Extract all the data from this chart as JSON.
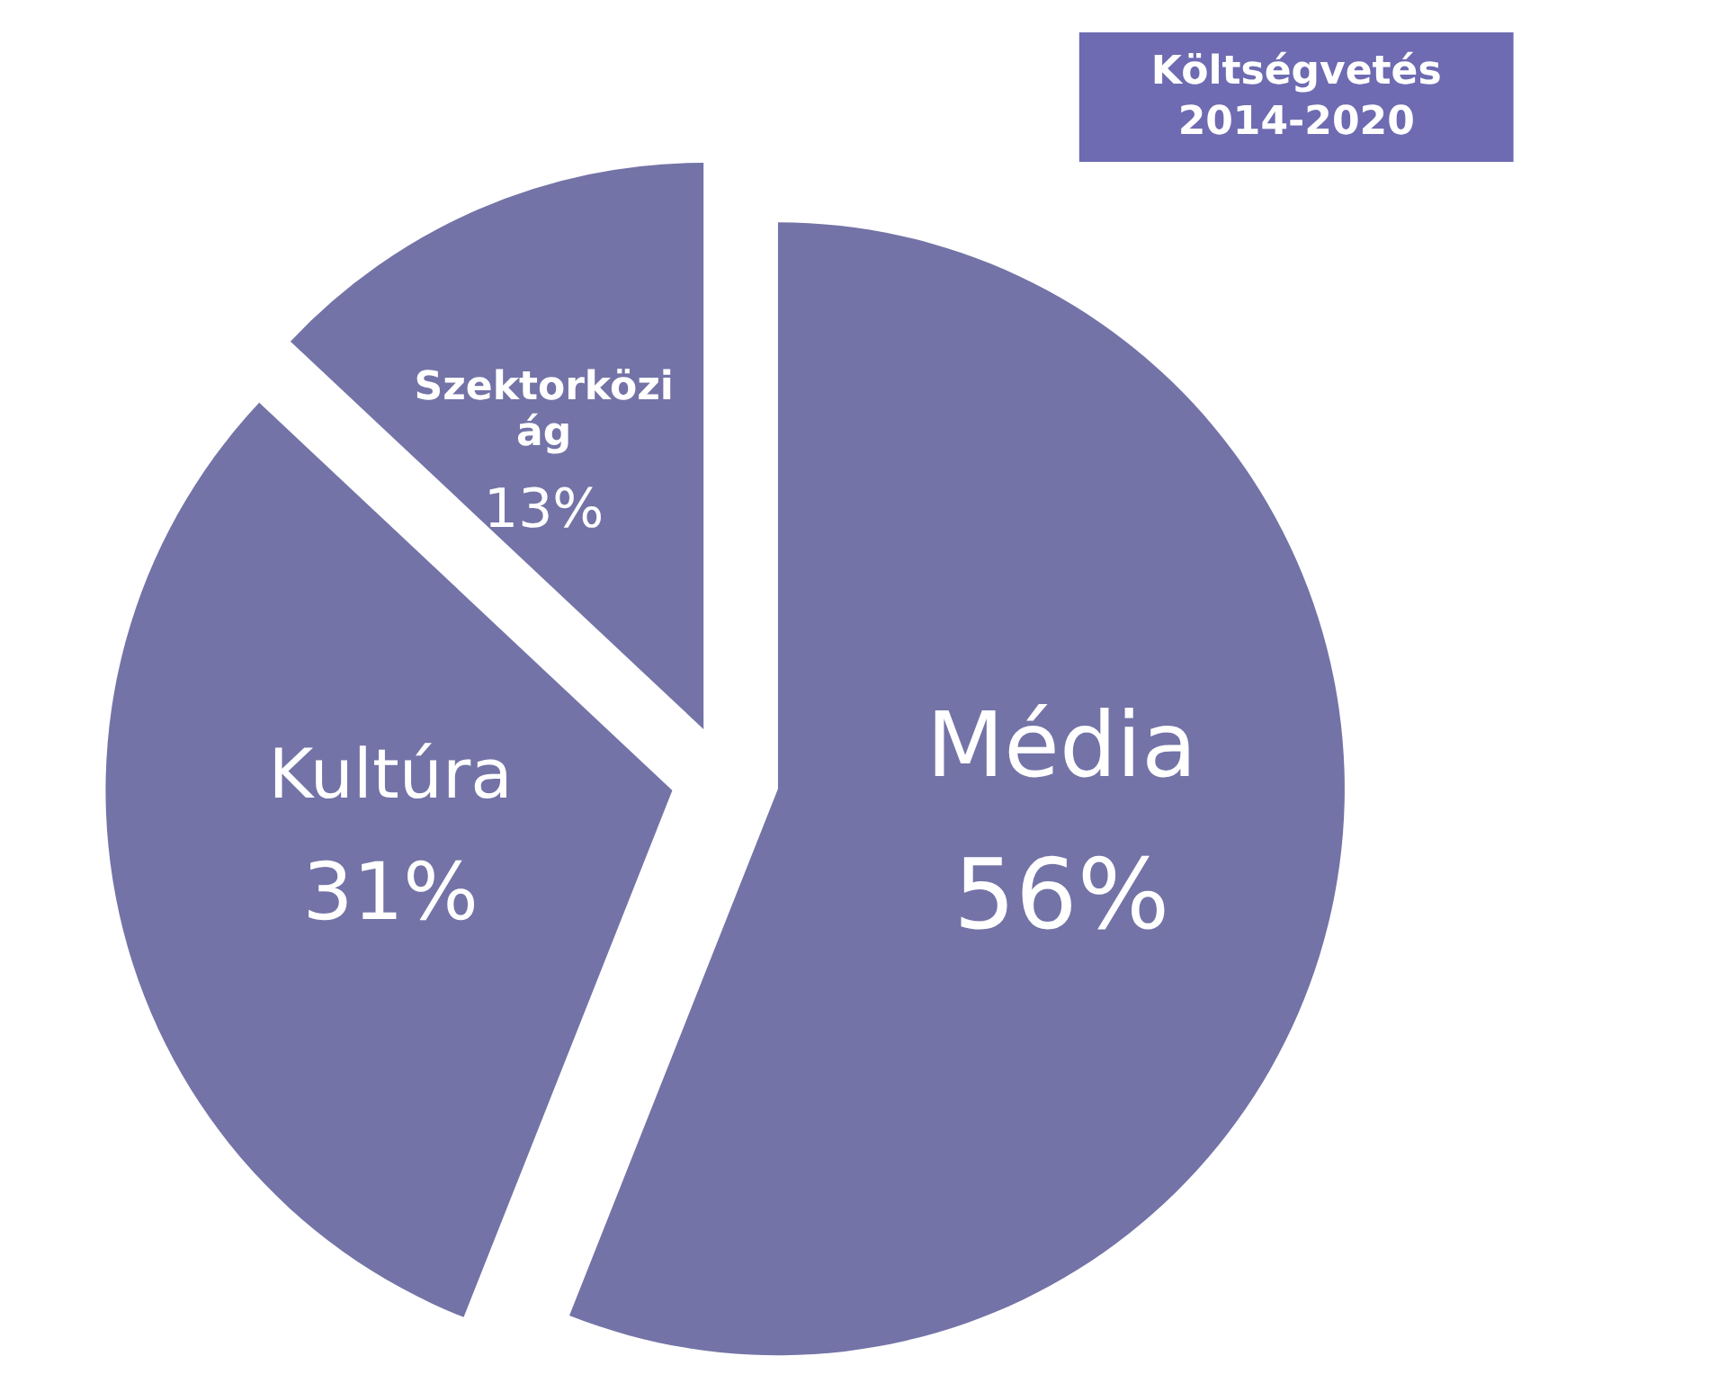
{
  "chart_data": {
    "type": "pie",
    "title": "Költségvetés\n2014-2020",
    "categories": [
      "Média",
      "Kultúra",
      "Szektorközi\nág"
    ],
    "values": [
      56,
      31,
      13
    ],
    "value_labels": [
      "56%",
      "31%",
      "13%"
    ],
    "colors": [
      "#7373a7",
      "#7373a7",
      "#7373a7"
    ]
  }
}
